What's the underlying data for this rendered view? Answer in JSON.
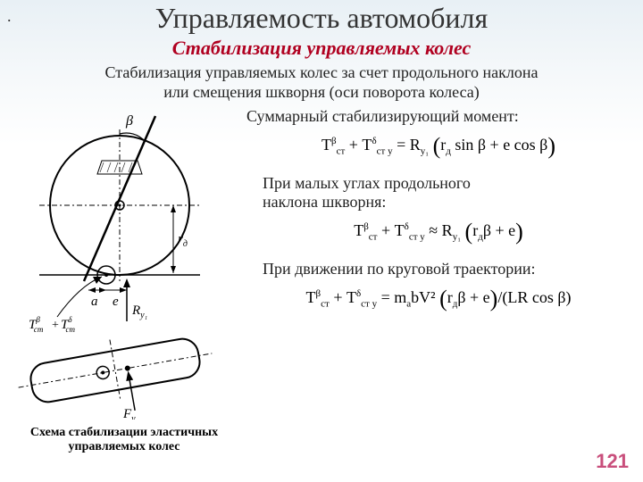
{
  "dot": ".",
  "title": "Управляемость автомобиля",
  "subtitle": "Стабилизация управляемых колес",
  "desc_line1": "Стабилизация управляемых колес за счет продольного наклона",
  "desc_line2": "или смещения шкворня (оси поворота колеса)",
  "label_summary": "Суммарный стабилизирующий момент:",
  "label_small_angles1": "При малых углах продольного",
  "label_small_angles2": "наклона шкворня:",
  "label_circular": "При движении по круговой траектории:",
  "caption_line1": "Схема стабилизации эластичных",
  "caption_line2": "управляемых колес",
  "pagenum": "121",
  "diagram": {
    "labels": {
      "beta": "β",
      "a": "a",
      "e": "e",
      "rd": "r",
      "rd_sub": "д",
      "Ry": "R",
      "Ry_sub": "y₁",
      "Fy": "F",
      "Fy_sub": "y₁",
      "Tbeta": "T",
      "Tbeta_sup": "β",
      "Tbeta_sub": "ст",
      "Tdelta": "T",
      "Tdelta_sup": "δ",
      "Tdelta_sub": "ст"
    },
    "colors": {
      "stroke": "#000000",
      "hatch": "#333333"
    }
  },
  "formulas": {
    "f1_html": "T<span class='sup'>β</span><span class='sub'>ст</span> + T<span class='sup'>δ</span><span class='sub'>ст y</span> = R<span class='sub'>y₁</span> <span class='big-paren'>(</span>r<span class='sub'>д</span> sin β + e cos β<span class='big-paren'>)</span>",
    "f2_html": "T<span class='sup'>β</span><span class='sub'>ст</span> + T<span class='sup'>δ</span><span class='sub'>ст y</span> ≈ R<span class='sub'>y₁</span> <span class='big-paren'>(</span>r<span class='sub'>д</span>β + e<span class='big-paren'>)</span>",
    "f3_html": "T<span class='sup'>β</span><span class='sub'>ст</span> + T<span class='sup'>δ</span><span class='sub'>ст y</span> = m<span class='sub'>a</span>bV² <span class='big-paren'>(</span>r<span class='sub'>д</span>β + e<span class='big-paren'>)</span>/(LR cos β)"
  }
}
